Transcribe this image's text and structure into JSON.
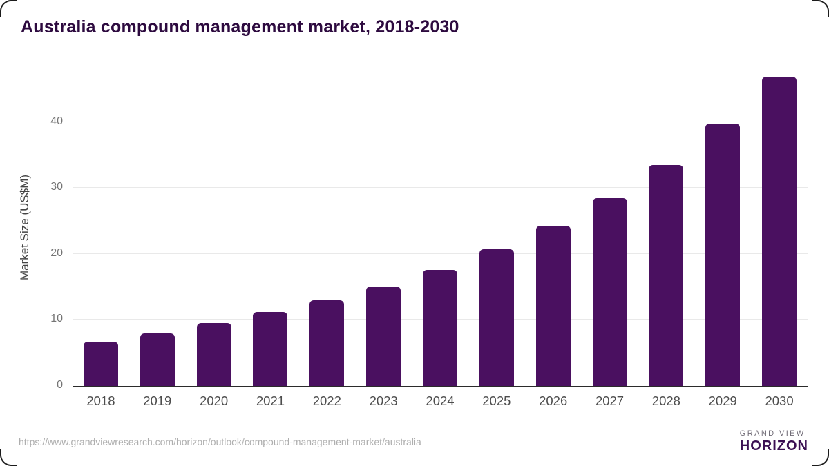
{
  "title": "Australia compound management market, 2018-2030",
  "chart_data": {
    "type": "bar",
    "categories": [
      "2018",
      "2019",
      "2020",
      "2021",
      "2022",
      "2023",
      "2024",
      "2025",
      "2026",
      "2027",
      "2028",
      "2029",
      "2030"
    ],
    "values": [
      6.7,
      8.0,
      9.5,
      11.2,
      13.0,
      15.1,
      17.6,
      20.7,
      24.3,
      28.4,
      33.5,
      39.7,
      46.8
    ],
    "title": "Australia compound management market, 2018-2030",
    "xlabel": "",
    "ylabel": "Market Size (US$M)",
    "ylim": [
      0,
      48
    ],
    "yticks": [
      0,
      10,
      20,
      30,
      40
    ],
    "grid": true,
    "legend": false,
    "bar_color": "#4a1060"
  },
  "colors": {
    "title": "#2d0a3f",
    "bar": "#4a1060",
    "gridline": "#e9e9e9",
    "axis_line": "#2b2b2b",
    "x_tick_label": "#4d4d4d",
    "y_tick_label": "#757575",
    "source_url": "#aeaeae",
    "logo_top_half": "#2e1a47",
    "logo_bottom_half": "#5ac1e8",
    "logo_horizon_text": "#3b1053"
  },
  "footer": {
    "source_url": "https://www.grandviewresearch.com/horizon/outlook/compound-management-market/australia",
    "logo": {
      "line1": "GRAND VIEW",
      "line2": "HORIZON"
    }
  }
}
